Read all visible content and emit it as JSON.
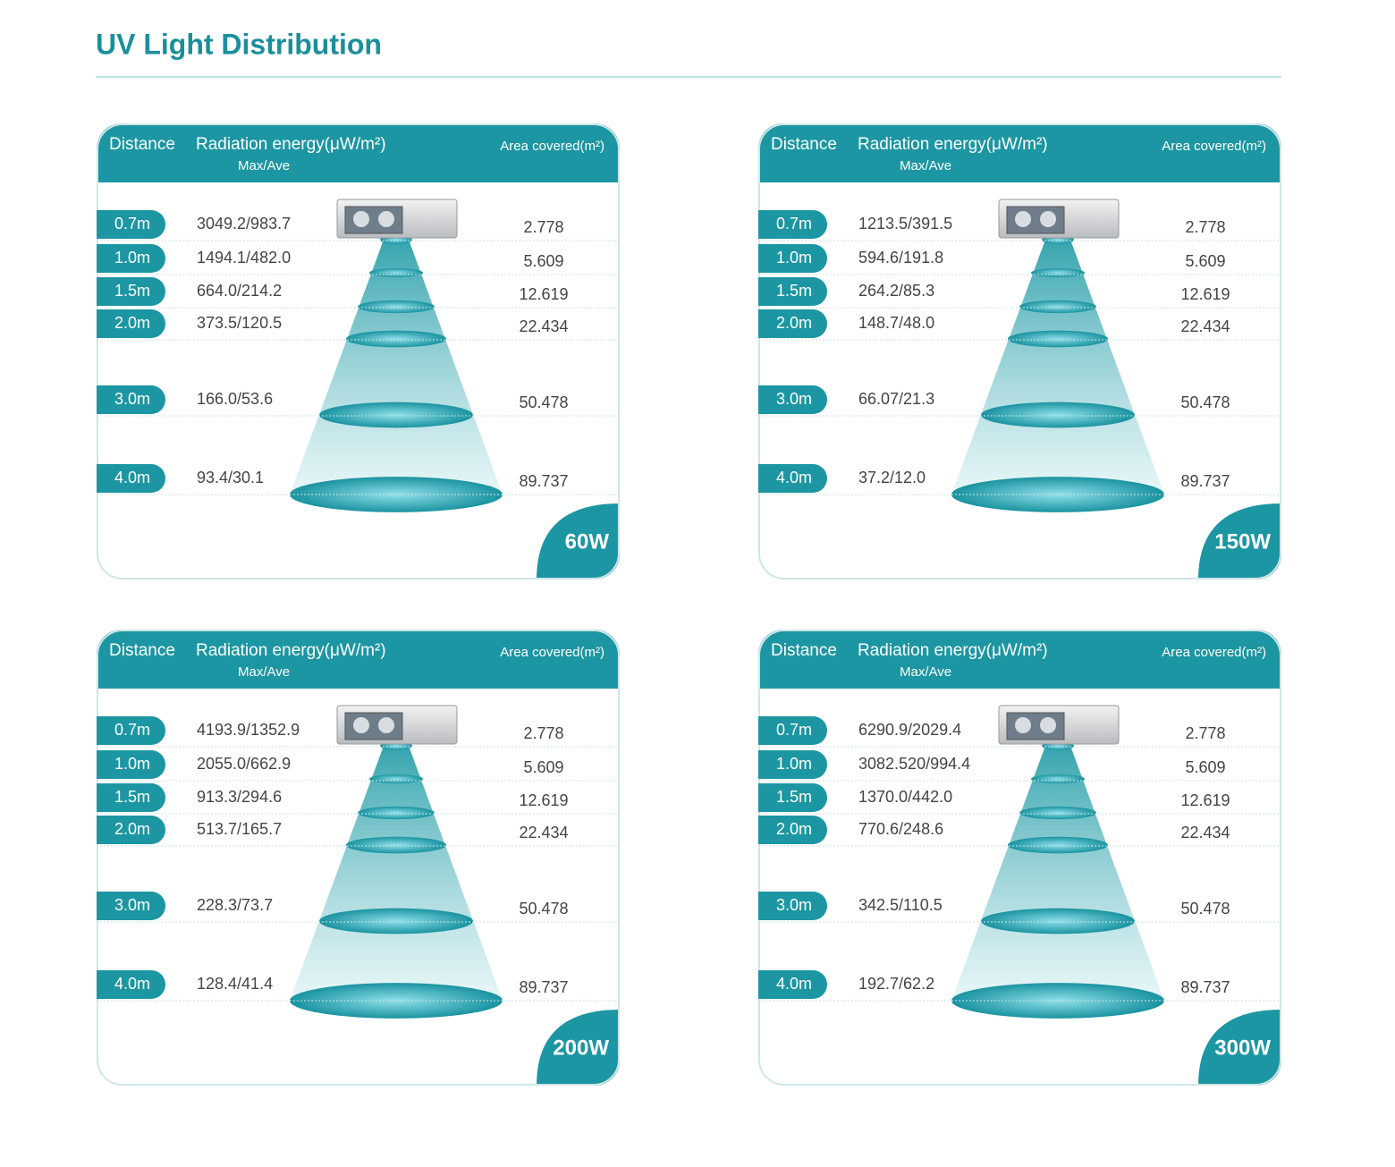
{
  "title": "UV Light Distribution",
  "panels": [
    {
      "headers": {
        "distance": "Distance",
        "radiation": "Radiation energy(μW/m²)",
        "sub": "Max/Ave",
        "area": "Area covered(m²)"
      },
      "power": "60W",
      "rows": [
        [
          "0.7m",
          "3049.2/983.7",
          "2.778"
        ],
        [
          "1.0m",
          "1494.1/482.0",
          "5.609"
        ],
        [
          "1.5m",
          "664.0/214.2",
          "12.619"
        ],
        [
          "2.0m",
          "373.5/120.5",
          "22.434"
        ],
        [
          "3.0m",
          "166.0/53.6",
          "50.478"
        ],
        [
          "4.0m",
          "93.4/30.1",
          "89.737"
        ]
      ]
    },
    {
      "headers": {
        "distance": "Distance",
        "radiation": "Radiation energy(μW/m²)",
        "sub": "Max/Ave",
        "area": "Area covered(m²)"
      },
      "power": "150W",
      "rows": [
        [
          "0.7m",
          "1213.5/391.5",
          "2.778"
        ],
        [
          "1.0m",
          "594.6/191.8",
          "5.609"
        ],
        [
          "1.5m",
          "264.2/85.3",
          "12.619"
        ],
        [
          "2.0m",
          "148.7/48.0",
          "22.434"
        ],
        [
          "3.0m",
          "66.07/21.3",
          "50.478"
        ],
        [
          "4.0m",
          "37.2/12.0",
          "89.737"
        ]
      ]
    },
    {
      "headers": {
        "distance": "Distance",
        "radiation": "Radiation energy(μW/m²)",
        "sub": "Max/Ave",
        "area": "Area covered(m²)"
      },
      "power": "200W",
      "rows": [
        [
          "0.7m",
          "4193.9/1352.9",
          "2.778"
        ],
        [
          "1.0m",
          "2055.0/662.9",
          "5.609"
        ],
        [
          "1.5m",
          "913.3/294.6",
          "12.619"
        ],
        [
          "2.0m",
          "513.7/165.7",
          "22.434"
        ],
        [
          "3.0m",
          "228.3/73.7",
          "50.478"
        ],
        [
          "4.0m",
          "128.4/41.4",
          "89.737"
        ]
      ]
    },
    {
      "headers": {
        "distance": "Distance",
        "radiation": "Radiation energy(μW/m²)",
        "sub": "Max/Ave",
        "area": "Area covered(m²)"
      },
      "power": "300W",
      "rows": [
        [
          "0.7m",
          "6290.9/2029.4",
          "2.778"
        ],
        [
          "1.0m",
          "3082.520/994.4",
          "5.609"
        ],
        [
          "1.5m",
          "1370.0/442.0",
          "12.619"
        ],
        [
          "2.0m",
          "770.6/248.6",
          "22.434"
        ],
        [
          "3.0m",
          "342.5/110.5",
          "50.478"
        ],
        [
          "4.0m",
          "192.7/62.2",
          "89.737"
        ]
      ]
    }
  ]
}
